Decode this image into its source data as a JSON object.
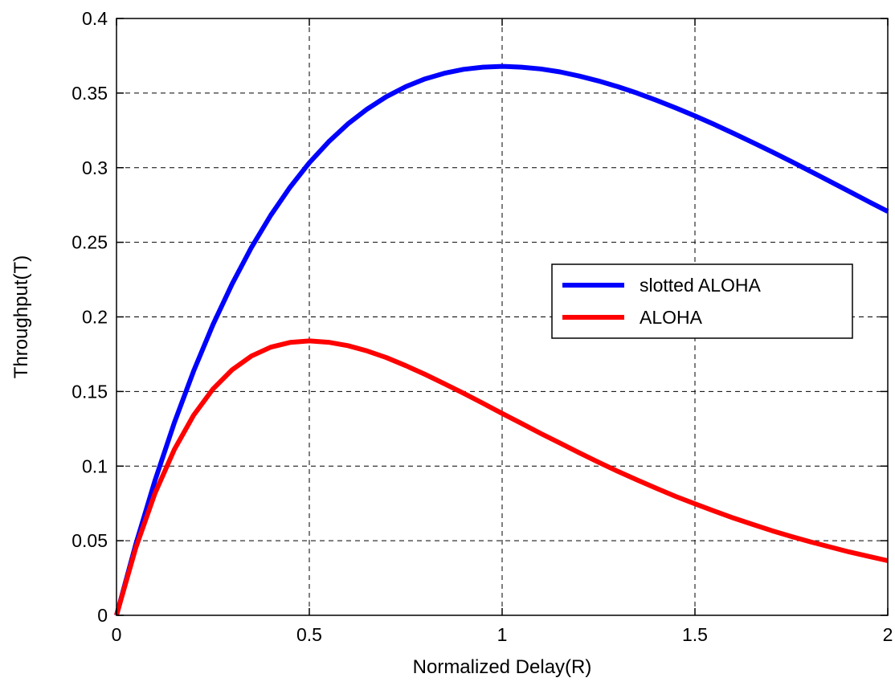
{
  "chart_data": {
    "type": "line",
    "xlabel": "Normalized Delay(R)",
    "ylabel": "Throughput(T)",
    "xlim": [
      0,
      2
    ],
    "ylim": [
      0,
      0.4
    ],
    "xticks": [
      0,
      0.5,
      1,
      1.5,
      2
    ],
    "xtick_labels": [
      "0",
      "0.5",
      "1",
      "1.5",
      "2"
    ],
    "yticks": [
      0,
      0.05,
      0.1,
      0.15,
      0.2,
      0.25,
      0.3,
      0.35,
      0.4
    ],
    "ytick_labels": [
      "0",
      "0.05",
      "0.1",
      "0.15",
      "0.2",
      "0.25",
      "0.3",
      "0.35",
      "0.4"
    ],
    "grid": true,
    "legend_position": "right",
    "series": [
      {
        "name": "slotted ALOHA",
        "color": "#0000ff",
        "x": [
          0,
          0.05,
          0.1,
          0.15,
          0.2,
          0.25,
          0.3,
          0.35,
          0.4,
          0.45,
          0.5,
          0.55,
          0.6,
          0.65,
          0.7,
          0.75,
          0.8,
          0.85,
          0.9,
          0.95,
          1.0,
          1.05,
          1.1,
          1.15,
          1.2,
          1.25,
          1.3,
          1.35,
          1.4,
          1.45,
          1.5,
          1.55,
          1.6,
          1.65,
          1.7,
          1.75,
          1.8,
          1.85,
          1.9,
          1.95,
          2.0
        ],
        "y": [
          0,
          0.0476,
          0.0905,
          0.1291,
          0.1637,
          0.1947,
          0.2222,
          0.2466,
          0.2681,
          0.2869,
          0.3033,
          0.3173,
          0.3293,
          0.3393,
          0.3476,
          0.3543,
          0.3595,
          0.3633,
          0.3659,
          0.3674,
          0.3679,
          0.3674,
          0.3662,
          0.3642,
          0.3614,
          0.3581,
          0.3543,
          0.35,
          0.3452,
          0.3401,
          0.3347,
          0.329,
          0.323,
          0.3169,
          0.3106,
          0.3041,
          0.2975,
          0.2908,
          0.2841,
          0.2773,
          0.2707
        ]
      },
      {
        "name": "ALOHA",
        "color": "#ff0000",
        "x": [
          0,
          0.05,
          0.1,
          0.15,
          0.2,
          0.25,
          0.3,
          0.35,
          0.4,
          0.45,
          0.5,
          0.55,
          0.6,
          0.65,
          0.7,
          0.75,
          0.8,
          0.85,
          0.9,
          0.95,
          1.0,
          1.05,
          1.1,
          1.15,
          1.2,
          1.25,
          1.3,
          1.35,
          1.4,
          1.45,
          1.5,
          1.55,
          1.6,
          1.65,
          1.7,
          1.75,
          1.8,
          1.85,
          1.9,
          1.95,
          2.0
        ],
        "y": [
          0,
          0.0452,
          0.0819,
          0.1111,
          0.1341,
          0.1516,
          0.1646,
          0.1738,
          0.1797,
          0.1829,
          0.1839,
          0.183,
          0.1807,
          0.1772,
          0.1727,
          0.1673,
          0.1615,
          0.1552,
          0.1488,
          0.1421,
          0.1353,
          0.1286,
          0.1219,
          0.1154,
          0.1089,
          0.1026,
          0.0965,
          0.0907,
          0.0851,
          0.0797,
          0.0747,
          0.0699,
          0.0652,
          0.0609,
          0.0567,
          0.0528,
          0.0492,
          0.0458,
          0.0425,
          0.0395,
          0.0366
        ]
      }
    ]
  }
}
